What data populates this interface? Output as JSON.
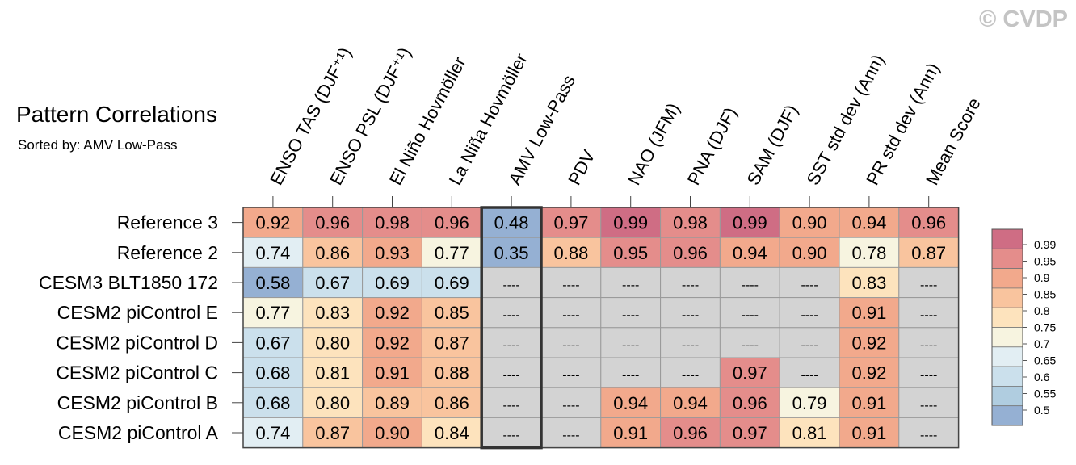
{
  "title": "Pattern Correlations",
  "subtitle": "Sorted by: AMV Low-Pass",
  "copyright": "© CVDP",
  "chart_data": {
    "type": "heatmap",
    "title": "Pattern Correlations",
    "subtitle": "Sorted by: AMV Low-Pass",
    "columns": [
      "ENSO TAS (DJF⁺¹)",
      "ENSO PSL (DJF⁺¹)",
      "El Niño Hovmöller",
      "La Niña Hovmöller",
      "AMV Low-Pass",
      "PDV",
      "NAO (JFM)",
      "PNA (DJF)",
      "SAM (DJF)",
      "SST std dev (Ann)",
      "PR std dev (Ann)",
      "Mean Score"
    ],
    "rows": [
      "Reference 3",
      "Reference 2",
      "CESM3 BLT1850 172",
      "CESM2 piControl E",
      "CESM2 piControl D",
      "CESM2 piControl C",
      "CESM2 piControl B",
      "CESM2 piControl A"
    ],
    "values": [
      [
        "0.92",
        "0.96",
        "0.98",
        "0.96",
        "0.48",
        "0.97",
        "0.99",
        "0.98",
        "0.99",
        "0.90",
        "0.94",
        "0.96"
      ],
      [
        "0.74",
        "0.86",
        "0.93",
        "0.77",
        "0.35",
        "0.88",
        "0.95",
        "0.96",
        "0.94",
        "0.90",
        "0.78",
        "0.87"
      ],
      [
        "0.58",
        "0.67",
        "0.69",
        "0.69",
        "----",
        "----",
        "----",
        "----",
        "----",
        "----",
        "0.83",
        "----"
      ],
      [
        "0.77",
        "0.83",
        "0.92",
        "0.85",
        "----",
        "----",
        "----",
        "----",
        "----",
        "----",
        "0.91",
        "----"
      ],
      [
        "0.67",
        "0.80",
        "0.92",
        "0.87",
        "----",
        "----",
        "----",
        "----",
        "----",
        "----",
        "0.92",
        "----"
      ],
      [
        "0.68",
        "0.81",
        "0.91",
        "0.88",
        "----",
        "----",
        "----",
        "----",
        "0.97",
        "----",
        "0.92",
        "----"
      ],
      [
        "0.68",
        "0.80",
        "0.89",
        "0.86",
        "----",
        "----",
        "0.94",
        "0.94",
        "0.96",
        "0.79",
        "0.91",
        "----"
      ],
      [
        "0.74",
        "0.87",
        "0.90",
        "0.84",
        "----",
        "----",
        "0.91",
        "0.96",
        "0.97",
        "0.81",
        "0.91",
        "----"
      ]
    ],
    "sorted_column": "AMV Low-Pass",
    "missing_color": "#d3d3d3",
    "colorbar": {
      "labels": [
        "0.99",
        "0.95",
        "0.9",
        "0.85",
        "0.8",
        "0.75",
        "0.7",
        "0.65",
        "0.6",
        "0.55",
        "0.5"
      ],
      "colors": [
        "#cf6d84",
        "#e48d8b",
        "#f2a98c",
        "#f9c49e",
        "#fde3bd",
        "#f7f4e0",
        "#e2eef3",
        "#cbe0ec",
        "#b0cde0",
        "#95b0d3"
      ],
      "range": [
        0.5,
        1.0
      ]
    }
  }
}
